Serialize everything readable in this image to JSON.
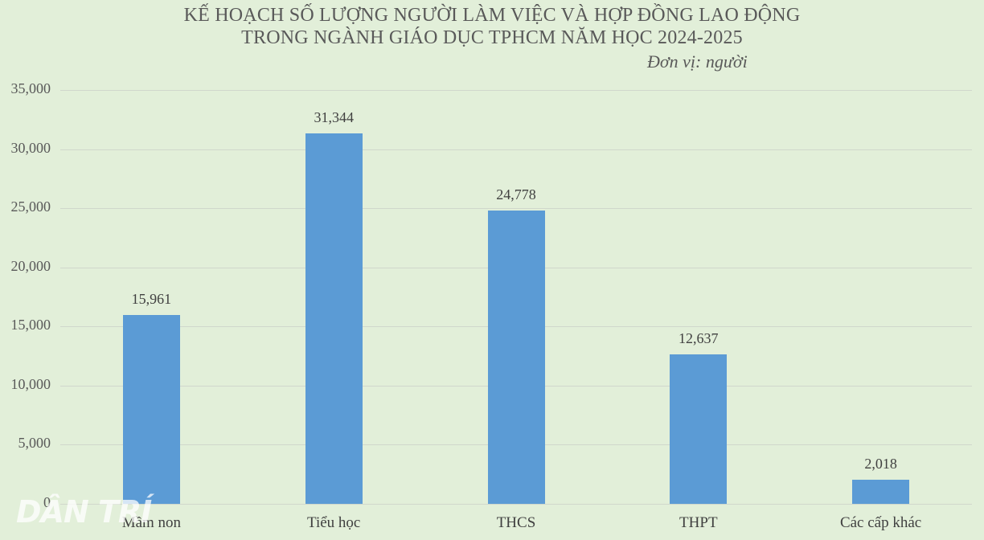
{
  "title_line1": "KẾ HOẠCH SỐ LƯỢNG NGƯỜI LÀM VIỆC VÀ HỢP ĐỒNG LAO ĐỘNG",
  "title_line2": "TRONG NGÀNH GIÁO DỤC TPHCM NĂM HỌC 2024-2025",
  "unit": "Đơn vị: người",
  "watermark": "DÂN TRÍ",
  "y_ticks": [
    "35,000",
    "30,000",
    "25,000",
    "20,000",
    "15,000",
    "10,000",
    "5,000",
    "0"
  ],
  "bars": [
    {
      "category": "Mầm non",
      "value": 15961,
      "label": "15,961"
    },
    {
      "category": "Tiểu học",
      "value": 31344,
      "label": "31,344"
    },
    {
      "category": "THCS",
      "value": 24778,
      "label": "24,778"
    },
    {
      "category": "THPT",
      "value": 12637,
      "label": "12,637"
    },
    {
      "category": "Các cấp khác",
      "value": 2018,
      "label": "2,018"
    }
  ],
  "colors": {
    "bar": "#5b9bd5",
    "background": "#e2efd9"
  },
  "chart_data": {
    "type": "bar",
    "title": "KẾ HOẠCH SỐ LƯỢNG NGƯỜI LÀM VIỆC VÀ HỢP ĐỒNG LAO ĐỘNG TRONG NGÀNH GIÁO DỤC TPHCM NĂM HỌC 2024-2025",
    "subtitle": "Đơn vị: người",
    "categories": [
      "Mầm non",
      "Tiểu học",
      "THCS",
      "THPT",
      "Các cấp khác"
    ],
    "values": [
      15961,
      31344,
      24778,
      12637,
      2018
    ],
    "xlabel": "",
    "ylabel": "",
    "ylim": [
      0,
      35000
    ],
    "yticks": [
      0,
      5000,
      10000,
      15000,
      20000,
      25000,
      30000,
      35000
    ],
    "grid": true,
    "legend": false,
    "data_labels": true
  }
}
